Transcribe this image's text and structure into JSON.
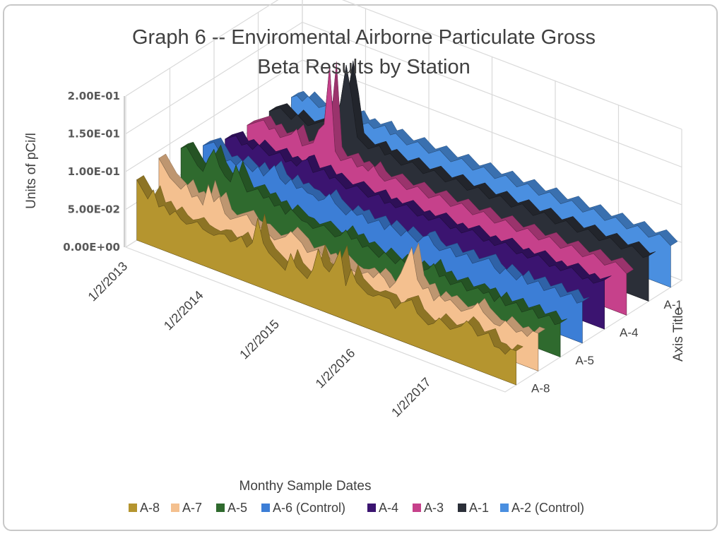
{
  "chart_data": {
    "type": "area",
    "subtype": "3d-area",
    "title_lines": [
      "Graph 6 -- Enviromental Airborne Particulate Gross",
      "Beta Results by Station"
    ],
    "ylabel": "Units of pCi/l",
    "xlabel": "Monthy Sample Dates",
    "zlabel": "Axis Title",
    "ylim": [
      0,
      0.2
    ],
    "y_ticks": [
      "0.00E+00",
      "5.00E-02",
      "1.00E-01",
      "1.50E-01",
      "2.00E-01"
    ],
    "x_ticks": [
      "1/2/2013",
      "1/2/2014",
      "1/2/2015",
      "1/2/2016",
      "1/2/2017"
    ],
    "depth_ticks": [
      "A-8",
      "A-5",
      "A-4",
      "A-1"
    ],
    "grid": true,
    "legend_position": "bottom",
    "series": [
      {
        "name": "A-8",
        "color": "#b5952f",
        "values": [
          0.08,
          0.07,
          0.06,
          0.075,
          0.055,
          0.06,
          0.05,
          0.058,
          0.05,
          0.046,
          0.05,
          0.055,
          0.048,
          0.046,
          0.045,
          0.05,
          0.052,
          0.045,
          0.05,
          0.058,
          0.046,
          0.055,
          0.09,
          0.06,
          0.05,
          0.045,
          0.04,
          0.035,
          0.06,
          0.045,
          0.04,
          0.035,
          0.05,
          0.08,
          0.06,
          0.055,
          0.07,
          0.09,
          0.045,
          0.07,
          0.055,
          0.05,
          0.045,
          0.045,
          0.05,
          0.05,
          0.05,
          0.04,
          0.05,
          0.055,
          0.06,
          0.045,
          0.04,
          0.035,
          0.04,
          0.05,
          0.045,
          0.04,
          0.045,
          0.05,
          0.06,
          0.055,
          0.045,
          0.05,
          0.055,
          0.04,
          0.04,
          0.035,
          0.045,
          0.045
        ]
      },
      {
        "name": "A-7",
        "color": "#f4c08f",
        "values": [
          0.09,
          0.08,
          0.07,
          0.065,
          0.06,
          0.07,
          0.055,
          0.06,
          0.05,
          0.08,
          0.06,
          0.07,
          0.05,
          0.045,
          0.05,
          0.055,
          0.06,
          0.05,
          0.048,
          0.05,
          0.045,
          0.04,
          0.045,
          0.05,
          0.06,
          0.055,
          0.05,
          0.04,
          0.045,
          0.05,
          0.04,
          0.045,
          0.035,
          0.05,
          0.045,
          0.04,
          0.038,
          0.04,
          0.045,
          0.04,
          0.05,
          0.045,
          0.035,
          0.045,
          0.06,
          0.08,
          0.1,
          0.06,
          0.05,
          0.055,
          0.04,
          0.05,
          0.045,
          0.05,
          0.045,
          0.04,
          0.045,
          0.05,
          0.06,
          0.05,
          0.045,
          0.04,
          0.04,
          0.05,
          0.045,
          0.04,
          0.045,
          0.04,
          0.05,
          0.05
        ]
      },
      {
        "name": "A-5",
        "color": "#2f6a2e",
        "values": [
          0.085,
          0.09,
          0.08,
          0.07,
          0.065,
          0.085,
          0.1,
          0.08,
          0.07,
          0.065,
          0.09,
          0.075,
          0.06,
          0.065,
          0.07,
          0.06,
          0.065,
          0.055,
          0.06,
          0.05,
          0.06,
          0.055,
          0.05,
          0.05,
          0.045,
          0.05,
          0.055,
          0.05,
          0.045,
          0.05,
          0.06,
          0.05,
          0.055,
          0.045,
          0.05,
          0.045,
          0.04,
          0.05,
          0.045,
          0.04,
          0.05,
          0.045,
          0.04,
          0.05,
          0.045,
          0.05,
          0.06,
          0.045,
          0.05,
          0.04,
          0.045,
          0.05,
          0.04,
          0.045,
          0.05,
          0.045,
          0.05,
          0.04,
          0.05,
          0.04,
          0.045,
          0.05,
          0.04,
          0.045,
          0.05,
          0.04,
          0.045,
          0.05,
          0.04,
          0.045
        ]
      },
      {
        "name": "A-6 (Control)",
        "color": "#3c7ed6",
        "values": [
          0.07,
          0.075,
          0.08,
          0.07,
          0.06,
          0.065,
          0.06,
          0.07,
          0.065,
          0.06,
          0.07,
          0.06,
          0.07,
          0.08,
          0.065,
          0.06,
          0.07,
          0.06,
          0.065,
          0.06,
          0.06,
          0.055,
          0.06,
          0.07,
          0.06,
          0.055,
          0.05,
          0.06,
          0.055,
          0.06,
          0.05,
          0.055,
          0.06,
          0.05,
          0.06,
          0.055,
          0.05,
          0.06,
          0.055,
          0.05,
          0.06,
          0.065,
          0.055,
          0.05,
          0.055,
          0.06,
          0.05,
          0.055,
          0.06,
          0.05,
          0.055,
          0.06,
          0.065,
          0.055,
          0.05,
          0.06,
          0.055,
          0.05,
          0.06,
          0.05,
          0.055,
          0.06,
          0.05,
          0.055,
          0.06,
          0.05,
          0.055,
          0.06,
          0.05,
          0.055
        ]
      },
      {
        "name": "A-4",
        "color": "#3b1470",
        "values": [
          0.06,
          0.065,
          0.07,
          0.06,
          0.065,
          0.06,
          0.07,
          0.065,
          0.06,
          0.065,
          0.07,
          0.06,
          0.065,
          0.06,
          0.07,
          0.075,
          0.06,
          0.065,
          0.07,
          0.06,
          0.065,
          0.06,
          0.055,
          0.06,
          0.065,
          0.06,
          0.055,
          0.06,
          0.065,
          0.055,
          0.06,
          0.055,
          0.06,
          0.065,
          0.06,
          0.055,
          0.06,
          0.055,
          0.06,
          0.065,
          0.06,
          0.055,
          0.06,
          0.055,
          0.06,
          0.065,
          0.06,
          0.055,
          0.06,
          0.055,
          0.06,
          0.065,
          0.06,
          0.055,
          0.06,
          0.055,
          0.06,
          0.065,
          0.06,
          0.055,
          0.06,
          0.055,
          0.06,
          0.065,
          0.06,
          0.055,
          0.06,
          0.055,
          0.06,
          0.065
        ]
      },
      {
        "name": "A-3",
        "color": "#c6418b",
        "values": [
          0.06,
          0.065,
          0.07,
          0.075,
          0.065,
          0.07,
          0.06,
          0.065,
          0.07,
          0.08,
          0.06,
          0.065,
          0.07,
          0.09,
          0.1,
          0.18,
          0.07,
          0.06,
          0.065,
          0.07,
          0.06,
          0.065,
          0.06,
          0.07,
          0.06,
          0.055,
          0.06,
          0.065,
          0.06,
          0.055,
          0.06,
          0.065,
          0.06,
          0.055,
          0.06,
          0.065,
          0.06,
          0.055,
          0.06,
          0.065,
          0.06,
          0.055,
          0.06,
          0.065,
          0.06,
          0.055,
          0.06,
          0.065,
          0.06,
          0.055,
          0.06,
          0.065,
          0.06,
          0.055,
          0.06,
          0.065,
          0.06,
          0.055,
          0.06,
          0.065,
          0.06,
          0.055,
          0.06,
          0.065,
          0.06,
          0.055,
          0.06,
          0.065,
          0.06,
          0.055
        ]
      },
      {
        "name": "A-1",
        "color": "#2b2f38",
        "values": [
          0.06,
          0.065,
          0.07,
          0.065,
          0.06,
          0.07,
          0.065,
          0.06,
          0.065,
          0.07,
          0.075,
          0.065,
          0.07,
          0.11,
          0.16,
          0.12,
          0.07,
          0.065,
          0.06,
          0.065,
          0.07,
          0.06,
          0.065,
          0.06,
          0.055,
          0.06,
          0.065,
          0.06,
          0.055,
          0.06,
          0.065,
          0.06,
          0.055,
          0.06,
          0.065,
          0.06,
          0.055,
          0.06,
          0.065,
          0.06,
          0.055,
          0.06,
          0.065,
          0.06,
          0.055,
          0.06,
          0.065,
          0.06,
          0.055,
          0.06,
          0.065,
          0.06,
          0.055,
          0.06,
          0.065,
          0.06,
          0.055,
          0.06,
          0.065,
          0.06,
          0.055,
          0.06,
          0.065,
          0.06,
          0.055,
          0.06,
          0.065,
          0.06,
          0.055,
          0.06
        ]
      },
      {
        "name": "A-2 (Control)",
        "color": "#4a8fe0",
        "values": [
          0.06,
          0.065,
          0.06,
          0.07,
          0.065,
          0.06,
          0.065,
          0.07,
          0.06,
          0.065,
          0.06,
          0.065,
          0.07,
          0.06,
          0.065,
          0.06,
          0.065,
          0.07,
          0.06,
          0.065,
          0.06,
          0.055,
          0.06,
          0.065,
          0.06,
          0.055,
          0.06,
          0.065,
          0.06,
          0.055,
          0.06,
          0.065,
          0.06,
          0.055,
          0.06,
          0.065,
          0.06,
          0.055,
          0.06,
          0.065,
          0.06,
          0.055,
          0.06,
          0.065,
          0.06,
          0.055,
          0.06,
          0.065,
          0.06,
          0.055,
          0.06,
          0.065,
          0.06,
          0.055,
          0.06,
          0.065,
          0.06,
          0.055,
          0.06,
          0.065,
          0.06,
          0.055,
          0.06,
          0.065,
          0.06,
          0.055,
          0.06,
          0.065,
          0.06,
          0.055
        ]
      }
    ]
  }
}
